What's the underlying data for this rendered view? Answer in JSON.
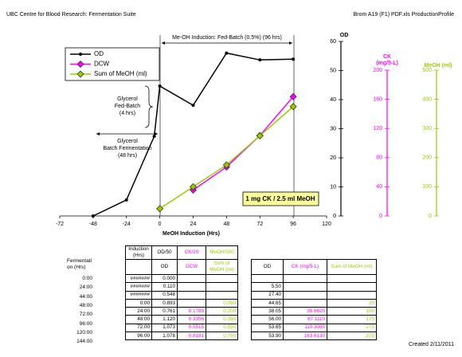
{
  "header": {
    "left": "UBC Centre for Blood Research: Fermentation Suite",
    "right": "Brom A19 (F1) PDF.xls  ProductionProfile"
  },
  "chart_data": {
    "type": "line",
    "x": [
      -48,
      -24,
      -4,
      0,
      24,
      48,
      72,
      96
    ],
    "xlabel": "MeOH Induction (Hrs)",
    "xlim": [
      -72,
      120
    ],
    "xticks": [
      -72,
      -48,
      -24,
      0,
      24,
      48,
      72,
      96,
      120
    ],
    "ylabel": "OD",
    "ylim": [
      0,
      60
    ],
    "yticks": [
      0,
      10,
      20,
      30,
      40,
      50,
      60
    ],
    "y2label": [
      "CK",
      "(mg/5-L)"
    ],
    "y2lim": [
      0,
      200
    ],
    "y2ticks": [
      0,
      40,
      80,
      120,
      160,
      200
    ],
    "y3label": "MeOH (ml)",
    "y3lim": [
      0,
      500
    ],
    "y3ticks": [
      0,
      100,
      200,
      300,
      400,
      500
    ],
    "legend": "upper left",
    "series": [
      {
        "name": "OD",
        "color": "#000000",
        "marker": "dot",
        "axis": "y",
        "values": [
          0,
          5.5,
          27.4,
          44.65,
          38.05,
          56,
          53.65,
          53.9
        ]
      },
      {
        "name": "DCW",
        "color": "#ff00ff",
        "marker": "diamond",
        "axis": "y2",
        "values": [
          null,
          null,
          null,
          null,
          35.662,
          67.111,
          110.308,
          163.613
        ]
      },
      {
        "name": "Sum of MeOH (ml)",
        "color": "#99cc00",
        "marker": "diamond",
        "axis": "y3",
        "values": [
          null,
          null,
          null,
          25,
          100,
          175,
          275,
          375
        ]
      }
    ],
    "annotations": {
      "induction": "Me-OH Induction: Fed-Batch (0.5%) (96 hrs)",
      "fed_batch": [
        "Glycerol",
        "Fed-Batch",
        "(4 hrs)"
      ],
      "batch": [
        "Glycerol",
        "Batch Fermentation",
        "(48 hrs)"
      ],
      "ratio": "1 mg CK / 2.5 ml MeOH"
    }
  },
  "fermentation": {
    "title": "Fermentation (Hrs)",
    "times": [
      "0:00",
      "24:00",
      "44:00",
      "48:00",
      "72:00",
      "96:00",
      "120:00",
      "144:00"
    ]
  },
  "left_table": {
    "header": [
      [
        "Induction (Hrs)",
        "OD/50",
        "CK/20",
        "MeOH/500"
      ],
      [
        null,
        "OD",
        "DCW",
        "Sum of MeOH (ml)"
      ]
    ],
    "rows": [
      [
        "#######",
        "0.000",
        null,
        null
      ],
      [
        "#######",
        "0.110",
        null,
        null
      ],
      [
        "#######",
        "0.548",
        null,
        null
      ],
      [
        "0:00",
        "0.893",
        null,
        "0.050"
      ],
      [
        "24:00",
        "0.761",
        "0.1783",
        "0.200"
      ],
      [
        "48:00",
        "1.120",
        "0.3356",
        "0.350"
      ],
      [
        "72:00",
        "1.073",
        "0.5515",
        "0.550"
      ],
      [
        "96:00",
        "1.078",
        "0.8181",
        "0.750"
      ]
    ]
  },
  "right_table": {
    "header": [
      [
        "OD",
        "CK (mg/5-L)",
        "Sum of MeOH (ml)"
      ]
    ],
    "rows": [
      [
        null,
        null,
        null
      ],
      [
        "5.50",
        null,
        null
      ],
      [
        "27.40",
        null,
        null
      ],
      [
        "44.65",
        null,
        "25"
      ],
      [
        "38.05",
        "35.6620",
        "100"
      ],
      [
        "56.00",
        "67.1110",
        "175"
      ],
      [
        "53.65",
        "110.3080",
        "275"
      ],
      [
        "53.90",
        "163.6130",
        "375"
      ]
    ]
  },
  "footer": "Created 2/11/2011"
}
